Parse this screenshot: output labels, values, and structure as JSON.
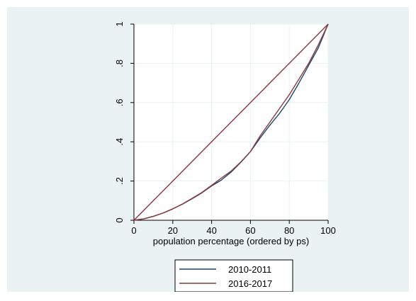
{
  "colors": {
    "background": "#eaf2f3",
    "plot_background": "#ffffff",
    "grid": "#eaf2f3",
    "series_2010": "#1a476f",
    "series_2016": "#90353b"
  },
  "chart_data": {
    "type": "line",
    "title": "",
    "xlabel": "population percentage (ordered by ps)",
    "ylabel": "",
    "xlim": [
      0,
      100
    ],
    "ylim": [
      0,
      1
    ],
    "xticks": [
      0,
      20,
      40,
      60,
      80,
      100
    ],
    "xtick_labels": [
      "0",
      "20",
      "40",
      "60",
      "80",
      "100"
    ],
    "yticks": [
      0,
      0.2,
      0.4,
      0.6,
      0.8,
      1
    ],
    "ytick_labels": [
      "0",
      ".2",
      ".4",
      ".6",
      ".8",
      "1"
    ],
    "grid": true,
    "legend": {
      "placement": "bottom",
      "entries": [
        "2010-2011",
        "2016-2017"
      ]
    },
    "equality_line": {
      "x": [
        0,
        100
      ],
      "y": [
        0,
        1
      ]
    },
    "series": [
      {
        "name": "2010-2011",
        "color": "#1a476f",
        "x": [
          0,
          5,
          10,
          15,
          20,
          25,
          30,
          35,
          40,
          45,
          50,
          55,
          60,
          65,
          70,
          75,
          80,
          85,
          90,
          95,
          100
        ],
        "y": [
          0,
          0.007,
          0.02,
          0.037,
          0.058,
          0.082,
          0.11,
          0.14,
          0.175,
          0.205,
          0.245,
          0.295,
          0.35,
          0.42,
          0.485,
          0.545,
          0.615,
          0.7,
          0.79,
          0.88,
          1.0
        ]
      },
      {
        "name": "2016-2017",
        "color": "#90353b",
        "x": [
          0,
          5,
          10,
          15,
          20,
          25,
          30,
          35,
          40,
          45,
          50,
          55,
          60,
          65,
          70,
          75,
          80,
          85,
          90,
          95,
          100
        ],
        "y": [
          0,
          0.007,
          0.02,
          0.037,
          0.058,
          0.083,
          0.112,
          0.142,
          0.178,
          0.215,
          0.25,
          0.297,
          0.35,
          0.43,
          0.5,
          0.57,
          0.64,
          0.72,
          0.8,
          0.895,
          1.0
        ]
      }
    ]
  }
}
